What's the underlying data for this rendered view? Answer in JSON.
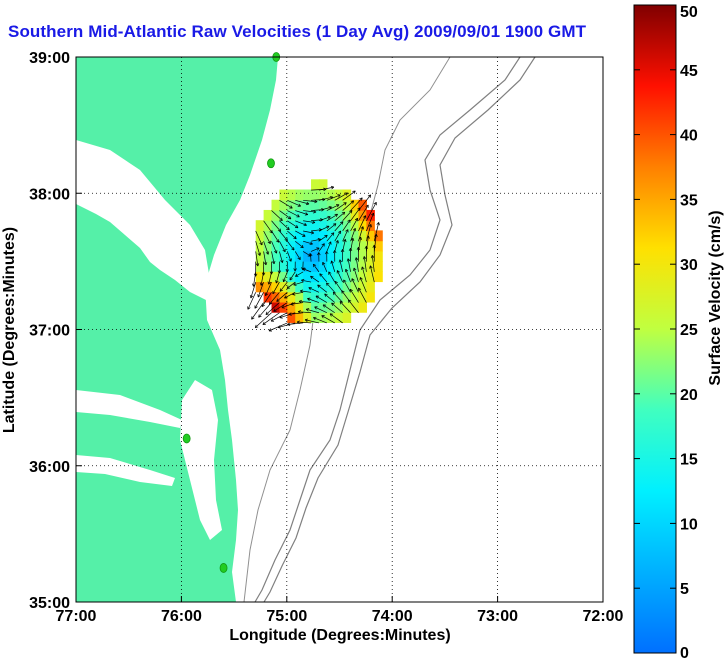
{
  "chart_data": {
    "type": "heatmap",
    "title": "Southern Mid-Atlantic Raw Velocities (1 Day Avg) 2009/09/01 1900 GMT",
    "xlabel": "Longitude (Degrees:Minutes)",
    "ylabel": "Latitude (Degrees:Minutes)",
    "x_ticks": [
      "77:00",
      "76:00",
      "75:00",
      "74:00",
      "73:00",
      "72:00"
    ],
    "y_ticks": [
      "39:00",
      "38:00",
      "37:00",
      "36:00",
      "35:00"
    ],
    "xlim": [
      -77,
      -72
    ],
    "ylim": [
      35,
      39
    ],
    "grid": true,
    "colorbar": {
      "label": "Surface Velocity (cm/s)",
      "min": 0,
      "max": 50,
      "ticks": [
        "0",
        "5",
        "10",
        "15",
        "20",
        "25",
        "30",
        "35",
        "40",
        "45",
        "50"
      ],
      "colormap": "jet"
    },
    "velocity_field": {
      "center_lon": -74.75,
      "center_lat": 37.5,
      "radius_deg": 0.62,
      "low_speed_center": [
        -74.8,
        37.5
      ],
      "high_speed_regions": [
        [
          -74.05,
          37.95
        ],
        [
          -75.2,
          37.0
        ]
      ]
    },
    "stations": [
      [
        -75.1,
        39.0
      ],
      [
        -75.15,
        38.22
      ],
      [
        -75.95,
        36.2
      ],
      [
        -75.6,
        35.25
      ]
    ]
  },
  "colors": {
    "land": "#55f0a8",
    "ocean": "#ffffff",
    "title": "#1a1ae6",
    "station": "#22cc22",
    "isobath": "#808080"
  }
}
